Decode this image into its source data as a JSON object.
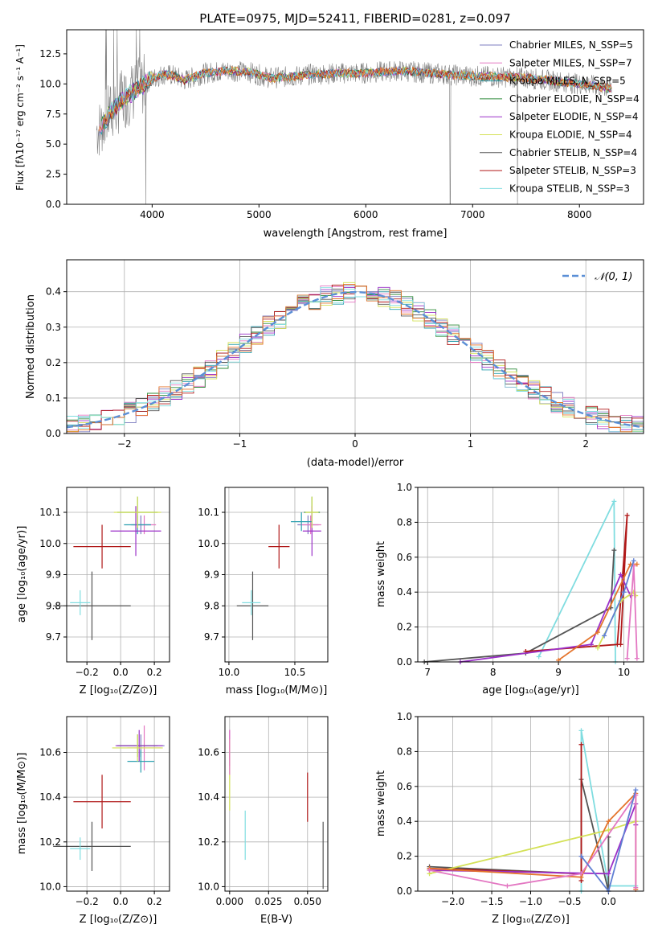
{
  "title": "PLATE=0975, MJD=52411, FIBERID=0281, z=0.097",
  "colors": {
    "Chabrier MILES": "#7d7dc0",
    "Salpeter MILES": "#e377c2",
    "Kroupa MILES": "#2ca0b0",
    "Chabrier ELODIE": "#2e8b3a",
    "Salpeter ELODIE": "#9b30c8",
    "Kroupa ELODIE": "#d4e157",
    "Chabrier STELIB": "#555555",
    "Salpeter STELIB": "#b01818",
    "Kroupa STELIB": "#80dde0",
    "data": "#808080",
    "normal": "#5b8fd6",
    "orange": "#e4742c",
    "blue": "#5f7fd3"
  },
  "chart_data": [
    {
      "id": "spectrum",
      "type": "line",
      "xlabel": "wavelength [Angstrom, rest frame]",
      "ylabel": "Flux [fλ10⁻¹⁷ erg cm⁻² s⁻¹ A⁻¹]",
      "xlim": [
        3200,
        8600
      ],
      "ylim": [
        0,
        14.5
      ],
      "xticks": [
        "4000",
        "5000",
        "6000",
        "7000",
        "8000"
      ],
      "yticks": [
        "0.0",
        "2.5",
        "5.0",
        "7.5",
        "10.0",
        "12.5"
      ],
      "legend": [
        "Chabrier MILES, N_SSP=5",
        "Salpeter MILES, N_SSP=7",
        "Kroupa MILES, N_SSP=5",
        "Chabrier ELODIE, N_SSP=4",
        "Salpeter ELODIE, N_SSP=4",
        "Kroupa ELODIE, N_SSP=4",
        "Chabrier STELIB, N_SSP=4",
        "Salpeter STELIB, N_SSP=3",
        "Kroupa STELIB, N_SSP=3"
      ],
      "continuum": {
        "x": [
          3500,
          3600,
          3700,
          3800,
          3900,
          4000,
          4100,
          4200,
          4300,
          4500,
          4700,
          4900,
          5100,
          5300,
          5500,
          5800,
          6000,
          6300,
          6600,
          6900,
          7200,
          7500,
          7800,
          8100,
          8300
        ],
        "y": [
          6.2,
          7.5,
          8.5,
          9.2,
          9.8,
          10.4,
          10.8,
          10.7,
          10.3,
          10.9,
          11.1,
          11.0,
          10.5,
          10.6,
          10.8,
          10.9,
          10.9,
          11.1,
          10.9,
          10.7,
          10.6,
          10.5,
          10.2,
          9.9,
          9.6
        ]
      }
    },
    {
      "id": "residuals",
      "type": "line",
      "xlabel": "(data-model)/error",
      "ylabel": "Normed distribution",
      "xlim": [
        -2.5,
        2.5
      ],
      "ylim": [
        0,
        0.49
      ],
      "xticks": [
        "−2",
        "−1",
        "0",
        "1",
        "2"
      ],
      "yticks": [
        "0.0",
        "0.1",
        "0.2",
        "0.3",
        "0.4"
      ],
      "legend": "𝒩(0, 1)"
    },
    {
      "id": "age-vs-Z",
      "type": "scatter",
      "xlabel": "Z [log₁₀(Z/Z⊙)]",
      "ylabel": "age  [log₁₀(age/yr)]",
      "xlim": [
        -0.32,
        0.29
      ],
      "ylim": [
        9.62,
        10.18
      ],
      "xticks": [
        "−0.2",
        "0.0",
        "0.2"
      ],
      "yticks": [
        "9.7",
        "9.8",
        "9.9",
        "10.0",
        "10.1"
      ],
      "points": [
        {
          "series": "Chabrier MILES",
          "x": 0.12,
          "y": 10.06,
          "xerr": 0.06,
          "yerr": 0.03
        },
        {
          "series": "Salpeter MILES",
          "x": 0.14,
          "y": 10.06,
          "xerr": 0.07,
          "yerr": 0.03
        },
        {
          "series": "Kroupa MILES",
          "x": 0.1,
          "y": 10.06,
          "xerr": 0.08,
          "yerr": 0.03
        },
        {
          "series": "Chabrier ELODIE",
          "x": 0.1,
          "y": 10.1,
          "xerr": 0.12,
          "yerr": 0.05
        },
        {
          "series": "Salpeter ELODIE",
          "x": 0.09,
          "y": 10.04,
          "xerr": 0.15,
          "yerr": 0.08
        },
        {
          "series": "Kroupa ELODIE",
          "x": 0.1,
          "y": 10.1,
          "xerr": 0.14,
          "yerr": 0.05
        },
        {
          "series": "Chabrier STELIB",
          "x": -0.17,
          "y": 9.8,
          "xerr": 0.23,
          "yerr": 0.11
        },
        {
          "series": "Salpeter STELIB",
          "x": -0.11,
          "y": 9.99,
          "xerr": 0.17,
          "yerr": 0.07
        },
        {
          "series": "Kroupa STELIB",
          "x": -0.24,
          "y": 9.81,
          "xerr": 0.06,
          "yerr": 0.04
        }
      ]
    },
    {
      "id": "age-vs-mass",
      "type": "scatter",
      "xlabel": "mass [log₁₀(M/M⊙)]",
      "xlim": [
        9.97,
        10.75
      ],
      "ylim": [
        9.62,
        10.18
      ],
      "xticks": [
        "10.0",
        "10.5"
      ],
      "yticks": [
        "9.7",
        "9.8",
        "9.9",
        "10.0",
        "10.1"
      ],
      "points": [
        {
          "series": "Chabrier MILES",
          "x": 10.6,
          "y": 10.06,
          "xerr": 0.08,
          "yerr": 0.03
        },
        {
          "series": "Salpeter MILES",
          "x": 10.62,
          "y": 10.06,
          "xerr": 0.08,
          "yerr": 0.03
        },
        {
          "series": "Kroupa MILES",
          "x": 10.55,
          "y": 10.07,
          "xerr": 0.08,
          "yerr": 0.03
        },
        {
          "series": "Chabrier ELODIE",
          "x": 10.63,
          "y": 10.1,
          "xerr": 0.06,
          "yerr": 0.05
        },
        {
          "series": "Salpeter ELODIE",
          "x": 10.63,
          "y": 10.04,
          "xerr": 0.07,
          "yerr": 0.08
        },
        {
          "series": "Kroupa ELODIE",
          "x": 10.63,
          "y": 10.1,
          "xerr": 0.05,
          "yerr": 0.05
        },
        {
          "series": "Chabrier STELIB",
          "x": 10.18,
          "y": 9.8,
          "xerr": 0.12,
          "yerr": 0.11
        },
        {
          "series": "Salpeter STELIB",
          "x": 10.38,
          "y": 9.99,
          "xerr": 0.08,
          "yerr": 0.07
        },
        {
          "series": "Kroupa STELIB",
          "x": 10.17,
          "y": 9.81,
          "xerr": 0.07,
          "yerr": 0.04
        }
      ]
    },
    {
      "id": "weight-vs-age",
      "type": "line",
      "xlabel": "age  [log₁₀(age/yr)]",
      "ylabel": "mass weight",
      "xlim": [
        6.85,
        10.3
      ],
      "ylim": [
        0,
        1
      ],
      "xticks": [
        "7",
        "8",
        "9",
        "10"
      ],
      "yticks": [
        "0.0",
        "0.2",
        "0.4",
        "0.6",
        "0.8",
        "1.0"
      ],
      "series": [
        {
          "name": "Kroupa STELIB",
          "x": [
            8.7,
            9.85,
            9.87
          ],
          "y": [
            0.03,
            0.92,
            0.0
          ]
        },
        {
          "name": "Chabrier STELIB",
          "x": [
            6.95,
            8.5,
            9.8,
            9.85
          ],
          "y": [
            0.0,
            0.05,
            0.31,
            0.64
          ]
        },
        {
          "name": "Salpeter STELIB",
          "x": [
            8.5,
            9.9,
            10.05,
            9.95
          ],
          "y": [
            0.06,
            0.1,
            0.84,
            0.1
          ]
        },
        {
          "name": "Salpeter ELODIE",
          "x": [
            7.5,
            9.5,
            9.95,
            10.1
          ],
          "y": [
            0.0,
            0.1,
            0.5,
            0.38
          ]
        },
        {
          "name": "Kroupa ELODIE",
          "x": [
            9.6,
            9.95,
            10.15,
            10.18
          ],
          "y": [
            0.08,
            0.35,
            0.4,
            0.38
          ]
        },
        {
          "name": "orange",
          "x": [
            9.0,
            9.6,
            10.1,
            10.2
          ],
          "y": [
            0.01,
            0.17,
            0.56,
            0.56
          ]
        },
        {
          "name": "Salpeter MILES",
          "x": [
            10.05,
            10.15,
            10.2
          ],
          "y": [
            0.02,
            0.55,
            0.02
          ]
        },
        {
          "name": "blue",
          "x": [
            9.7,
            10.0,
            10.15
          ],
          "y": [
            0.15,
            0.4,
            0.58
          ]
        }
      ]
    },
    {
      "id": "mass-vs-Z",
      "type": "scatter",
      "xlabel": "Z [log₁₀(Z/Z⊙)]",
      "ylabel": "mass [log₁₀(M/M⊙)]",
      "xlim": [
        -0.32,
        0.29
      ],
      "ylim": [
        9.98,
        10.76
      ],
      "xticks": [
        "−0.2",
        "0.0",
        "0.2"
      ],
      "yticks": [
        "10.0",
        "10.2",
        "10.4",
        "10.6"
      ],
      "points": [
        {
          "series": "Chabrier MILES",
          "x": 0.12,
          "y": 10.63,
          "xerr": 0.14,
          "yerr": 0.05
        },
        {
          "series": "Salpeter MILES",
          "x": 0.14,
          "y": 10.62,
          "xerr": 0.1,
          "yerr": 0.1
        },
        {
          "series": "Kroupa MILES",
          "x": 0.12,
          "y": 10.56,
          "xerr": 0.08,
          "yerr": 0.05
        },
        {
          "series": "Chabrier ELODIE",
          "x": 0.1,
          "y": 10.63,
          "xerr": 0.12,
          "yerr": 0.05
        },
        {
          "series": "Salpeter ELODIE",
          "x": 0.11,
          "y": 10.63,
          "xerr": 0.14,
          "yerr": 0.07
        },
        {
          "series": "Kroupa ELODIE",
          "x": 0.1,
          "y": 10.62,
          "xerr": 0.15,
          "yerr": 0.06
        },
        {
          "series": "Chabrier STELIB",
          "x": -0.17,
          "y": 10.18,
          "xerr": 0.23,
          "yerr": 0.11
        },
        {
          "series": "Salpeter STELIB",
          "x": -0.11,
          "y": 10.38,
          "xerr": 0.17,
          "yerr": 0.12
        },
        {
          "series": "Kroupa STELIB",
          "x": -0.24,
          "y": 10.17,
          "xerr": 0.06,
          "yerr": 0.05
        }
      ]
    },
    {
      "id": "mass-vs-ebv",
      "type": "scatter",
      "xlabel": "E(B-V)",
      "xlim": [
        -0.003,
        0.063
      ],
      "ylim": [
        9.98,
        10.76
      ],
      "xticks": [
        "0.000",
        "0.025",
        "0.050"
      ],
      "yticks": [
        "10.0",
        "10.2",
        "10.4",
        "10.6"
      ],
      "points": [
        {
          "series": "Salpeter ELODIE",
          "x": 0.0,
          "y": 10.62,
          "yerr": 0.08
        },
        {
          "series": "Kroupa ELODIE",
          "x": 0.0,
          "y": 10.5,
          "yerr": 0.16
        },
        {
          "series": "Salpeter MILES",
          "x": 0.0,
          "y": 10.6,
          "yerr": 0.1
        },
        {
          "series": "Kroupa STELIB",
          "x": 0.01,
          "y": 10.23,
          "yerr": 0.11
        },
        {
          "series": "Salpeter STELIB",
          "x": 0.05,
          "y": 10.4,
          "yerr": 0.11
        },
        {
          "series": "Chabrier STELIB",
          "x": 0.06,
          "y": 10.14,
          "yerr": 0.15
        }
      ]
    },
    {
      "id": "weight-vs-Z",
      "type": "line",
      "xlabel": "Z [log₁₀(Z/Z⊙)]",
      "ylabel": "mass weight",
      "xlim": [
        -2.45,
        0.45
      ],
      "ylim": [
        0,
        1
      ],
      "xticks": [
        "−2.0",
        "−1.5",
        "−1.0",
        "−0.5",
        "0.0"
      ],
      "yticks": [
        "0.0",
        "0.2",
        "0.4",
        "0.6",
        "0.8",
        "1.0"
      ],
      "series": [
        {
          "name": "Kroupa STELIB",
          "x": [
            -0.35,
            -0.35,
            0.0,
            0.35
          ],
          "y": [
            0.0,
            0.92,
            0.03,
            0.03
          ]
        },
        {
          "name": "Chabrier STELIB",
          "x": [
            -2.3,
            -0.35,
            -0.35,
            0.0,
            0.0
          ],
          "y": [
            0.14,
            0.1,
            0.64,
            0.0,
            0.31
          ]
        },
        {
          "name": "Salpeter STELIB",
          "x": [
            -2.3,
            -0.35,
            -0.35,
            -0.35
          ],
          "y": [
            0.13,
            0.1,
            0.84,
            0.06
          ]
        },
        {
          "name": "Kroupa ELODIE",
          "x": [
            -2.3,
            0.0,
            0.35
          ],
          "y": [
            0.1,
            0.35,
            0.4
          ]
        },
        {
          "name": "Salpeter ELODIE",
          "x": [
            -2.3,
            0.0,
            0.35,
            0.35
          ],
          "y": [
            0.12,
            0.1,
            0.5,
            0.38
          ]
        },
        {
          "name": "orange",
          "x": [
            -2.3,
            -0.35,
            0.0,
            0.35,
            0.35
          ],
          "y": [
            0.13,
            0.08,
            0.4,
            0.56,
            0.01
          ]
        },
        {
          "name": "Salpeter MILES",
          "x": [
            -2.3,
            -1.3,
            -0.35,
            0.35,
            0.35
          ],
          "y": [
            0.12,
            0.03,
            0.1,
            0.55,
            0.02
          ]
        },
        {
          "name": "blue",
          "x": [
            -0.35,
            0.0,
            0.35
          ],
          "y": [
            0.2,
            0.0,
            0.58
          ]
        }
      ]
    }
  ]
}
